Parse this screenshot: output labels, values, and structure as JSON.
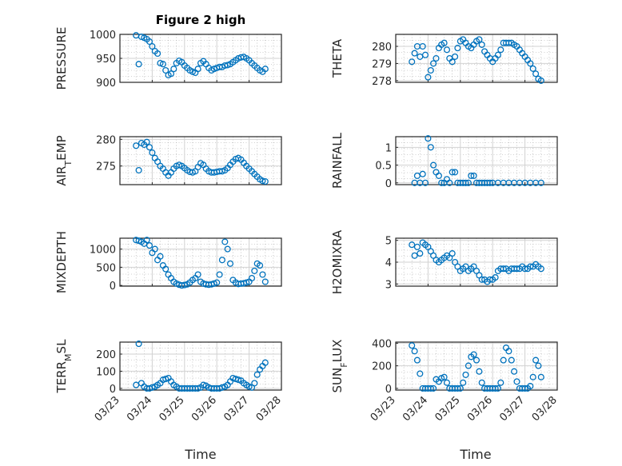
{
  "figure_title": "Figure 2 high",
  "x_label": "Time",
  "x_ticks": [
    "03/23",
    "03/24",
    "03/25",
    "03/26",
    "03/27",
    "03/28"
  ],
  "marker_color": "#0072BD",
  "chart_data": [
    {
      "type": "scatter",
      "ylabel": "PRESSURE",
      "ylim": [
        900,
        1000
      ],
      "yticks": [
        "900",
        "950",
        "1000"
      ],
      "x": [
        "03/23 12:00",
        "03/23 14:00",
        "03/23 16:00",
        "03/23 18:00",
        "03/23 20:00",
        "03/23 22:00",
        "03/24 00:00",
        "03/24 02:00",
        "03/24 04:00",
        "03/24 06:00",
        "03/24 08:00",
        "03/24 10:00",
        "03/24 12:00",
        "03/24 14:00",
        "03/24 16:00",
        "03/24 18:00",
        "03/24 20:00",
        "03/24 22:00",
        "03/25 00:00",
        "03/25 02:00",
        "03/25 04:00",
        "03/25 06:00",
        "03/25 08:00",
        "03/25 10:00",
        "03/25 12:00",
        "03/25 14:00",
        "03/25 16:00",
        "03/25 18:00",
        "03/25 20:00",
        "03/25 22:00",
        "03/26 00:00",
        "03/26 02:00",
        "03/26 04:00",
        "03/26 06:00",
        "03/26 08:00",
        "03/26 10:00",
        "03/26 12:00",
        "03/26 14:00",
        "03/26 16:00",
        "03/26 18:00",
        "03/26 20:00",
        "03/26 22:00",
        "03/27 00:00",
        "03/27 02:00",
        "03/27 04:00",
        "03/27 06:00",
        "03/27 08:00",
        "03/27 10:00",
        "03/27 12:00"
      ],
      "values": [
        998,
        938,
        995,
        993,
        990,
        985,
        975,
        965,
        960,
        940,
        938,
        925,
        915,
        918,
        928,
        940,
        945,
        942,
        935,
        930,
        925,
        922,
        920,
        928,
        940,
        944,
        938,
        930,
        925,
        928,
        930,
        932,
        932,
        935,
        936,
        938,
        942,
        946,
        950,
        952,
        953,
        950,
        946,
        940,
        935,
        930,
        925,
        922,
        928
      ]
    },
    {
      "type": "scatter",
      "ylabel": "THETA",
      "ylim": [
        277.9,
        280.7
      ],
      "yticks": [
        "278",
        "279",
        "280"
      ],
      "x": [
        "03/23 12:00",
        "03/23 14:00",
        "03/23 16:00",
        "03/23 18:00",
        "03/23 20:00",
        "03/23 22:00",
        "03/24 00:00",
        "03/24 02:00",
        "03/24 04:00",
        "03/24 06:00",
        "03/24 08:00",
        "03/24 10:00",
        "03/24 12:00",
        "03/24 14:00",
        "03/24 16:00",
        "03/24 18:00",
        "03/24 20:00",
        "03/24 22:00",
        "03/25 00:00",
        "03/25 02:00",
        "03/25 04:00",
        "03/25 06:00",
        "03/25 08:00",
        "03/25 10:00",
        "03/25 12:00",
        "03/25 14:00",
        "03/25 16:00",
        "03/25 18:00",
        "03/25 20:00",
        "03/25 22:00",
        "03/26 00:00",
        "03/26 02:00",
        "03/26 04:00",
        "03/26 06:00",
        "03/26 08:00",
        "03/26 10:00",
        "03/26 12:00",
        "03/26 14:00",
        "03/26 16:00",
        "03/26 18:00",
        "03/26 20:00",
        "03/26 22:00",
        "03/27 00:00",
        "03/27 02:00",
        "03/27 04:00",
        "03/27 06:00",
        "03/27 08:00",
        "03/27 10:00",
        "03/27 12:00"
      ],
      "values": [
        279.1,
        279.6,
        280.0,
        279.4,
        280.0,
        279.5,
        278.2,
        278.6,
        279.0,
        279.3,
        279.9,
        280.1,
        280.2,
        279.8,
        279.3,
        279.1,
        279.4,
        279.9,
        280.3,
        280.4,
        280.2,
        280.0,
        279.9,
        280.1,
        280.3,
        280.4,
        280.1,
        279.7,
        279.5,
        279.3,
        279.1,
        279.3,
        279.5,
        279.8,
        280.2,
        280.2,
        280.2,
        280.2,
        280.1,
        280.0,
        279.8,
        279.6,
        279.4,
        279.2,
        279.0,
        278.7,
        278.4,
        278.1,
        278.0
      ]
    },
    {
      "type": "scatter",
      "ylabel": "AIR_TEMP",
      "ylim": [
        271.5,
        280.5
      ],
      "yticks": [
        "275",
        "280"
      ],
      "x": [
        "03/23 12:00",
        "03/23 14:00",
        "03/23 16:00",
        "03/23 18:00",
        "03/23 20:00",
        "03/23 22:00",
        "03/24 00:00",
        "03/24 02:00",
        "03/24 04:00",
        "03/24 06:00",
        "03/24 08:00",
        "03/24 10:00",
        "03/24 12:00",
        "03/24 14:00",
        "03/24 16:00",
        "03/24 18:00",
        "03/24 20:00",
        "03/24 22:00",
        "03/25 00:00",
        "03/25 02:00",
        "03/25 04:00",
        "03/25 06:00",
        "03/25 08:00",
        "03/25 10:00",
        "03/25 12:00",
        "03/25 14:00",
        "03/25 16:00",
        "03/25 18:00",
        "03/25 20:00",
        "03/25 22:00",
        "03/26 00:00",
        "03/26 02:00",
        "03/26 04:00",
        "03/26 06:00",
        "03/26 08:00",
        "03/26 10:00",
        "03/26 12:00",
        "03/26 14:00",
        "03/26 16:00",
        "03/26 18:00",
        "03/26 20:00",
        "03/26 22:00",
        "03/27 00:00",
        "03/27 02:00",
        "03/27 04:00",
        "03/27 06:00",
        "03/27 08:00",
        "03/27 10:00",
        "03/27 12:00"
      ],
      "values": [
        278.8,
        274.2,
        279.3,
        279.0,
        279.5,
        278.5,
        277.5,
        276.5,
        275.8,
        275.0,
        274.5,
        273.8,
        273.2,
        273.8,
        274.5,
        275.0,
        275.2,
        275.0,
        274.6,
        274.2,
        273.9,
        273.8,
        274.0,
        274.8,
        275.5,
        275.2,
        274.5,
        274.0,
        273.8,
        273.8,
        273.9,
        274.0,
        274.0,
        274.2,
        274.6,
        275.2,
        275.8,
        276.3,
        276.5,
        276.2,
        275.6,
        275.0,
        274.5,
        274.0,
        273.5,
        273.0,
        272.5,
        272.2,
        272.1
      ]
    },
    {
      "type": "scatter",
      "ylabel": "RAINFALL",
      "ylim": [
        -0.05,
        1.3
      ],
      "yticks": [
        "0",
        "0.5",
        "1"
      ],
      "x": [
        "03/23 14:00",
        "03/23 16:00",
        "03/23 18:00",
        "03/23 20:00",
        "03/23 22:00",
        "03/24 00:00",
        "03/24 02:00",
        "03/24 04:00",
        "03/24 06:00",
        "03/24 08:00",
        "03/24 10:00",
        "03/24 12:00",
        "03/24 14:00",
        "03/24 16:00",
        "03/24 18:00",
        "03/24 20:00",
        "03/24 22:00",
        "03/25 00:00",
        "03/25 02:00",
        "03/25 04:00",
        "03/25 06:00",
        "03/25 08:00",
        "03/25 10:00",
        "03/25 12:00",
        "03/25 14:00",
        "03/25 16:00",
        "03/25 18:00",
        "03/25 20:00",
        "03/25 22:00",
        "03/26 00:00",
        "03/26 04:00",
        "03/26 08:00",
        "03/26 12:00",
        "03/26 16:00",
        "03/26 20:00",
        "03/27 00:00",
        "03/27 04:00",
        "03/27 08:00",
        "03/27 12:00"
      ],
      "values": [
        0.0,
        0.2,
        0.0,
        0.25,
        0.0,
        1.25,
        1.0,
        0.5,
        0.3,
        0.2,
        0.0,
        0.0,
        0.1,
        0.0,
        0.3,
        0.3,
        0.0,
        0.0,
        0.0,
        0.0,
        0.0,
        0.2,
        0.2,
        0.0,
        0.0,
        0.0,
        0.0,
        0.0,
        0.0,
        0.0,
        0.0,
        0.0,
        0.0,
        0.0,
        0.0,
        0.0,
        0.0,
        0.0,
        0.0
      ]
    },
    {
      "type": "scatter",
      "ylabel": "MIXDEPTH",
      "ylim": [
        -20,
        1300
      ],
      "yticks": [
        "0",
        "500",
        "1000"
      ],
      "x": [
        "03/23 12:00",
        "03/23 14:00",
        "03/23 16:00",
        "03/23 18:00",
        "03/23 20:00",
        "03/23 22:00",
        "03/24 00:00",
        "03/24 02:00",
        "03/24 04:00",
        "03/24 06:00",
        "03/24 08:00",
        "03/24 10:00",
        "03/24 12:00",
        "03/24 14:00",
        "03/24 16:00",
        "03/24 18:00",
        "03/24 20:00",
        "03/24 22:00",
        "03/25 00:00",
        "03/25 02:00",
        "03/25 04:00",
        "03/25 06:00",
        "03/25 08:00",
        "03/25 10:00",
        "03/25 12:00",
        "03/25 14:00",
        "03/25 16:00",
        "03/25 18:00",
        "03/25 20:00",
        "03/25 22:00",
        "03/26 00:00",
        "03/26 02:00",
        "03/26 04:00",
        "03/26 06:00",
        "03/26 08:00",
        "03/26 10:00",
        "03/26 12:00",
        "03/26 14:00",
        "03/26 16:00",
        "03/26 18:00",
        "03/26 20:00",
        "03/26 22:00",
        "03/27 00:00",
        "03/27 02:00",
        "03/27 04:00",
        "03/27 06:00",
        "03/27 08:00",
        "03/27 10:00",
        "03/27 12:00"
      ],
      "values": [
        1250,
        1230,
        1200,
        1150,
        1250,
        1100,
        900,
        1000,
        700,
        800,
        550,
        450,
        300,
        200,
        100,
        50,
        20,
        0,
        10,
        30,
        80,
        150,
        200,
        300,
        100,
        50,
        30,
        20,
        30,
        50,
        80,
        300,
        700,
        1200,
        1000,
        600,
        150,
        80,
        40,
        50,
        60,
        80,
        100,
        200,
        400,
        600,
        550,
        300,
        100
      ]
    },
    {
      "type": "scatter",
      "ylabel": "H2OMIXRA",
      "ylim": [
        2.9,
        5.1
      ],
      "yticks": [
        "3",
        "4",
        "5"
      ],
      "x": [
        "03/23 12:00",
        "03/23 14:00",
        "03/23 16:00",
        "03/23 18:00",
        "03/23 20:00",
        "03/23 22:00",
        "03/24 00:00",
        "03/24 02:00",
        "03/24 04:00",
        "03/24 06:00",
        "03/24 08:00",
        "03/24 10:00",
        "03/24 12:00",
        "03/24 14:00",
        "03/24 16:00",
        "03/24 18:00",
        "03/24 20:00",
        "03/24 22:00",
        "03/25 00:00",
        "03/25 02:00",
        "03/25 04:00",
        "03/25 06:00",
        "03/25 08:00",
        "03/25 10:00",
        "03/25 12:00",
        "03/25 14:00",
        "03/25 16:00",
        "03/25 18:00",
        "03/25 20:00",
        "03/25 22:00",
        "03/26 00:00",
        "03/26 02:00",
        "03/26 04:00",
        "03/26 06:00",
        "03/26 08:00",
        "03/26 10:00",
        "03/26 12:00",
        "03/26 14:00",
        "03/26 16:00",
        "03/26 18:00",
        "03/26 20:00",
        "03/26 22:00",
        "03/27 00:00",
        "03/27 02:00",
        "03/27 04:00",
        "03/27 06:00",
        "03/27 08:00",
        "03/27 10:00",
        "03/27 12:00"
      ],
      "values": [
        4.8,
        4.3,
        4.7,
        4.4,
        4.9,
        4.8,
        4.7,
        4.5,
        4.3,
        4.1,
        4.0,
        4.1,
        4.2,
        4.3,
        4.2,
        4.4,
        4.0,
        3.8,
        3.6,
        3.7,
        3.8,
        3.6,
        3.7,
        3.8,
        3.6,
        3.4,
        3.2,
        3.2,
        3.1,
        3.2,
        3.2,
        3.3,
        3.6,
        3.7,
        3.7,
        3.7,
        3.6,
        3.7,
        3.7,
        3.7,
        3.7,
        3.8,
        3.7,
        3.7,
        3.8,
        3.8,
        3.9,
        3.8,
        3.7
      ]
    },
    {
      "type": "scatter",
      "ylabel": "TERR_MSL",
      "ylim": [
        -10,
        270
      ],
      "yticks": [
        "0",
        "100",
        "200"
      ],
      "x": [
        "03/23 12:00",
        "03/23 14:00",
        "03/23 16:00",
        "03/23 18:00",
        "03/23 20:00",
        "03/23 22:00",
        "03/24 00:00",
        "03/24 02:00",
        "03/24 04:00",
        "03/24 06:00",
        "03/24 08:00",
        "03/24 10:00",
        "03/24 12:00",
        "03/24 14:00",
        "03/24 16:00",
        "03/24 18:00",
        "03/24 20:00",
        "03/24 22:00",
        "03/25 00:00",
        "03/25 02:00",
        "03/25 04:00",
        "03/25 06:00",
        "03/25 08:00",
        "03/25 10:00",
        "03/25 12:00",
        "03/25 14:00",
        "03/25 16:00",
        "03/25 18:00",
        "03/25 20:00",
        "03/25 22:00",
        "03/26 00:00",
        "03/26 02:00",
        "03/26 04:00",
        "03/26 06:00",
        "03/26 08:00",
        "03/26 10:00",
        "03/26 12:00",
        "03/26 14:00",
        "03/26 16:00",
        "03/26 18:00",
        "03/26 20:00",
        "03/26 22:00",
        "03/27 00:00",
        "03/27 02:00",
        "03/27 04:00",
        "03/27 06:00",
        "03/27 08:00",
        "03/27 10:00",
        "03/27 12:00"
      ],
      "values": [
        20,
        260,
        30,
        10,
        0,
        0,
        5,
        10,
        20,
        30,
        50,
        55,
        60,
        40,
        20,
        10,
        0,
        0,
        0,
        0,
        0,
        0,
        0,
        0,
        5,
        20,
        15,
        5,
        0,
        0,
        0,
        0,
        5,
        10,
        20,
        40,
        60,
        55,
        50,
        45,
        30,
        20,
        10,
        5,
        30,
        80,
        110,
        130,
        150
      ]
    },
    {
      "type": "scatter",
      "ylabel": "SUN_FLUX",
      "ylim": [
        -15,
        410
      ],
      "yticks": [
        "0",
        "200",
        "400"
      ],
      "x": [
        "03/23 12:00",
        "03/23 14:00",
        "03/23 16:00",
        "03/23 18:00",
        "03/23 20:00",
        "03/23 22:00",
        "03/24 00:00",
        "03/24 02:00",
        "03/24 04:00",
        "03/24 06:00",
        "03/24 08:00",
        "03/24 10:00",
        "03/24 12:00",
        "03/24 14:00",
        "03/24 16:00",
        "03/24 18:00",
        "03/24 20:00",
        "03/24 22:00",
        "03/25 00:00",
        "03/25 02:00",
        "03/25 04:00",
        "03/25 06:00",
        "03/25 08:00",
        "03/25 10:00",
        "03/25 12:00",
        "03/25 14:00",
        "03/25 16:00",
        "03/25 18:00",
        "03/25 20:00",
        "03/25 22:00",
        "03/26 00:00",
        "03/26 02:00",
        "03/26 04:00",
        "03/26 06:00",
        "03/26 08:00",
        "03/26 10:00",
        "03/26 12:00",
        "03/26 14:00",
        "03/26 16:00",
        "03/26 18:00",
        "03/26 20:00",
        "03/26 22:00",
        "03/27 00:00",
        "03/27 02:00",
        "03/27 04:00",
        "03/27 06:00",
        "03/27 08:00",
        "03/27 10:00",
        "03/27 12:00"
      ],
      "values": [
        380,
        330,
        250,
        130,
        0,
        0,
        0,
        0,
        0,
        80,
        60,
        90,
        100,
        50,
        0,
        0,
        0,
        0,
        0,
        50,
        120,
        200,
        280,
        300,
        250,
        150,
        50,
        0,
        0,
        0,
        0,
        0,
        0,
        50,
        250,
        360,
        330,
        250,
        150,
        60,
        0,
        0,
        0,
        0,
        20,
        100,
        250,
        200,
        100
      ]
    }
  ]
}
